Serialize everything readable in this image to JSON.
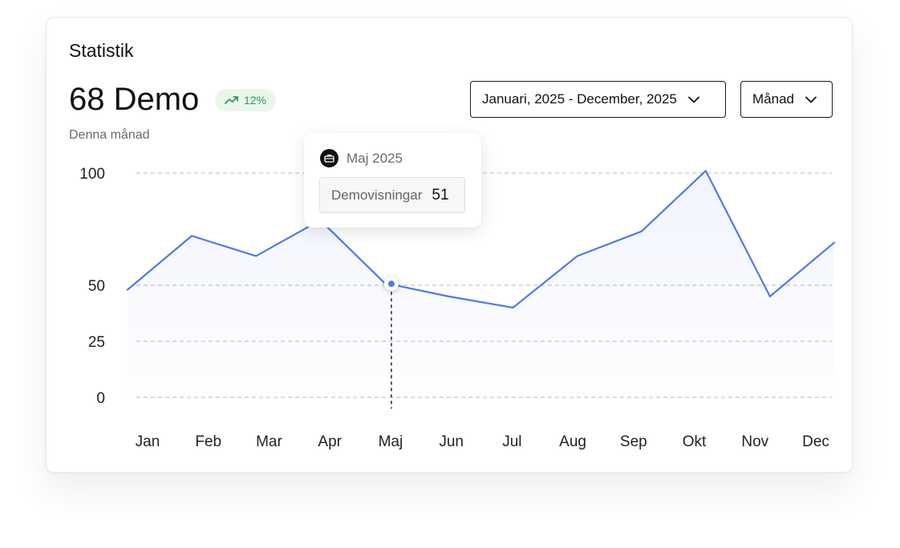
{
  "header": {
    "title": "Statistik",
    "value": "68 Demo",
    "badge_text": "12%",
    "badge_icon": "trending-up-icon",
    "subtitle": "Denna månad"
  },
  "filters": {
    "date_range": "Januari, 2025 - December, 2025",
    "period": "Månad"
  },
  "tooltip": {
    "title": "Maj 2025",
    "icon": "briefcase-icon",
    "label": "Demovisningar",
    "value": "51"
  },
  "colors": {
    "line": "#4f7be8",
    "badge_bg": "#e9f6ec",
    "badge_text": "#2e9a4e",
    "grid": "#b8b8b8"
  },
  "chart_data": {
    "type": "area",
    "categories": [
      "Jan",
      "Feb",
      "Mar",
      "Apr",
      "Maj",
      "Jun",
      "Jul",
      "Aug",
      "Sep",
      "Okt",
      "Nov",
      "Dec"
    ],
    "series": [
      {
        "values": [
          48,
          72,
          63,
          79,
          51,
          45,
          40,
          63,
          74,
          101,
          45,
          69
        ]
      }
    ],
    "y_ticks": [
      0,
      25,
      50,
      100
    ],
    "ylim": [
      0,
      100
    ],
    "grid": true,
    "highlight_index": 4
  }
}
